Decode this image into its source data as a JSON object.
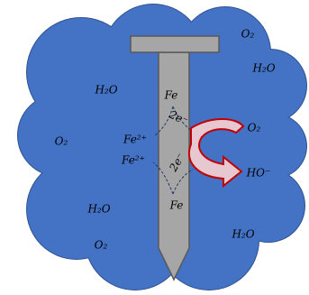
{
  "labels": [
    "O₂",
    "H₂O",
    "H₂O",
    "Fe",
    "2e⁻",
    "O₂",
    "O₂",
    "Fe²⁺",
    "Fe²⁺",
    "HO⁻",
    "2e⁻",
    "H₂O",
    "Fe",
    "O₂",
    "H₂O"
  ]
}
